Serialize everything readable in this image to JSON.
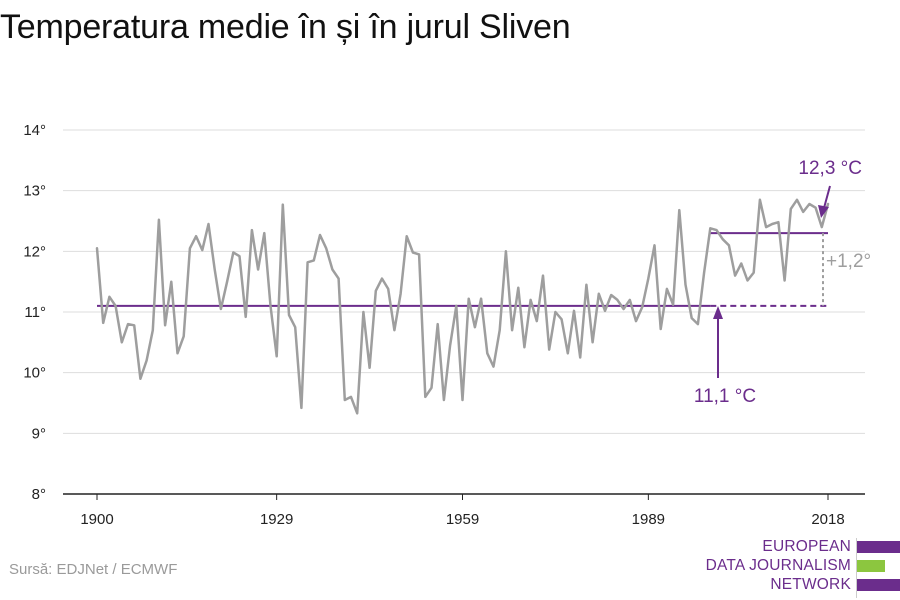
{
  "title": "Temperatura medie în și în jurul Sliven",
  "source": "Sursă: EDJNet / ECMWF",
  "logo": {
    "lines": [
      "EUROPEAN",
      "DATA JOURNALISM",
      "NETWORK"
    ],
    "colors": {
      "purple": "#6b2d8c",
      "green": "#8cc63f"
    }
  },
  "colors": {
    "series": "#9e9e9e",
    "reference": "#6b2d8c",
    "difference": "#9e9e9e",
    "grid": "#dddddd"
  },
  "chart_data": {
    "type": "line",
    "title": "Temperatura medie în și în jurul Sliven",
    "xlabel": "",
    "ylabel": "",
    "xlim": [
      1900,
      2018
    ],
    "ylim": [
      8,
      14
    ],
    "x_ticks": [
      1900,
      1929,
      1959,
      1989,
      2018
    ],
    "y_ticks": [
      {
        "value": 8,
        "label": "8°"
      },
      {
        "value": 9,
        "label": "9°"
      },
      {
        "value": 10,
        "label": "10°"
      },
      {
        "value": 11,
        "label": "11°"
      },
      {
        "value": 12,
        "label": "12°"
      },
      {
        "value": 13,
        "label": "13°"
      },
      {
        "value": 14,
        "label": "14°"
      }
    ],
    "grid": true,
    "series": [
      {
        "x": [
          1900,
          1901,
          1902,
          1903,
          1904,
          1905,
          1906,
          1907,
          1908,
          1909,
          1910,
          1911,
          1912,
          1913,
          1914,
          1915,
          1916,
          1917,
          1918,
          1919,
          1920,
          1921,
          1922,
          1923,
          1924,
          1925,
          1926,
          1927,
          1928,
          1929,
          1930,
          1931,
          1932,
          1933,
          1934,
          1935,
          1936,
          1937,
          1938,
          1939,
          1940,
          1941,
          1942,
          1943,
          1944,
          1945,
          1946,
          1947,
          1948,
          1949,
          1950,
          1951,
          1952,
          1953,
          1954,
          1955,
          1956,
          1957,
          1958,
          1959,
          1960,
          1961,
          1962,
          1963,
          1964,
          1965,
          1966,
          1967,
          1968,
          1969,
          1970,
          1971,
          1972,
          1973,
          1974,
          1975,
          1976,
          1977,
          1978,
          1979,
          1980,
          1981,
          1982,
          1983,
          1984,
          1985,
          1986,
          1987,
          1988,
          1989,
          1990,
          1991,
          1992,
          1993,
          1994,
          1995,
          1996,
          1997,
          1998,
          1999,
          2000,
          2001,
          2002,
          2003,
          2004,
          2005,
          2006,
          2007,
          2008,
          2009,
          2010,
          2011,
          2012,
          2013,
          2014,
          2015,
          2016,
          2017,
          2018
        ],
        "values": [
          12.05,
          10.82,
          11.25,
          11.1,
          10.5,
          10.8,
          10.78,
          9.9,
          10.2,
          10.7,
          12.52,
          10.78,
          11.5,
          10.32,
          10.6,
          12.05,
          12.25,
          12.02,
          12.45,
          11.7,
          11.05,
          11.5,
          11.98,
          11.92,
          10.92,
          12.35,
          11.7,
          12.3,
          11.1,
          10.27,
          12.77,
          10.95,
          10.75,
          9.42,
          11.82,
          11.85,
          12.27,
          12.05,
          11.7,
          11.55,
          9.55,
          9.6,
          9.33,
          11.0,
          10.08,
          11.35,
          11.55,
          11.38,
          10.7,
          11.3,
          12.25,
          11.98,
          11.95,
          9.6,
          9.75,
          10.8,
          9.55,
          10.45,
          11.1,
          9.55,
          11.22,
          10.75,
          11.22,
          10.32,
          10.1,
          10.7,
          12.0,
          10.7,
          11.4,
          10.42,
          11.2,
          10.85,
          11.6,
          10.38,
          11.0,
          10.88,
          10.32,
          11.02,
          10.25,
          11.45,
          10.5,
          11.3,
          11.02,
          11.28,
          11.2,
          11.05,
          11.2,
          10.85,
          11.08,
          11.55,
          12.1,
          10.72,
          11.38,
          11.12,
          12.68,
          11.45,
          10.9,
          10.8,
          11.65,
          12.38,
          12.35,
          12.2,
          12.1,
          11.6,
          11.8,
          11.52,
          11.65,
          12.85,
          12.4,
          12.45,
          12.48,
          11.52,
          12.7,
          12.85,
          12.65,
          12.78,
          12.72,
          12.4,
          12.78
        ]
      }
    ],
    "reference_lines": [
      {
        "value": 11.1,
        "from": 1900,
        "to": 1999,
        "style": "solid"
      },
      {
        "value": 11.1,
        "from": 1999,
        "to": 2018,
        "style": "dashed"
      },
      {
        "value": 12.3,
        "from": 1999,
        "to": 2018,
        "style": "solid"
      }
    ],
    "annotations": [
      {
        "text": "12,3 °C"
      },
      {
        "text": "11,1 °C"
      },
      {
        "text": "+1,2°"
      }
    ]
  }
}
